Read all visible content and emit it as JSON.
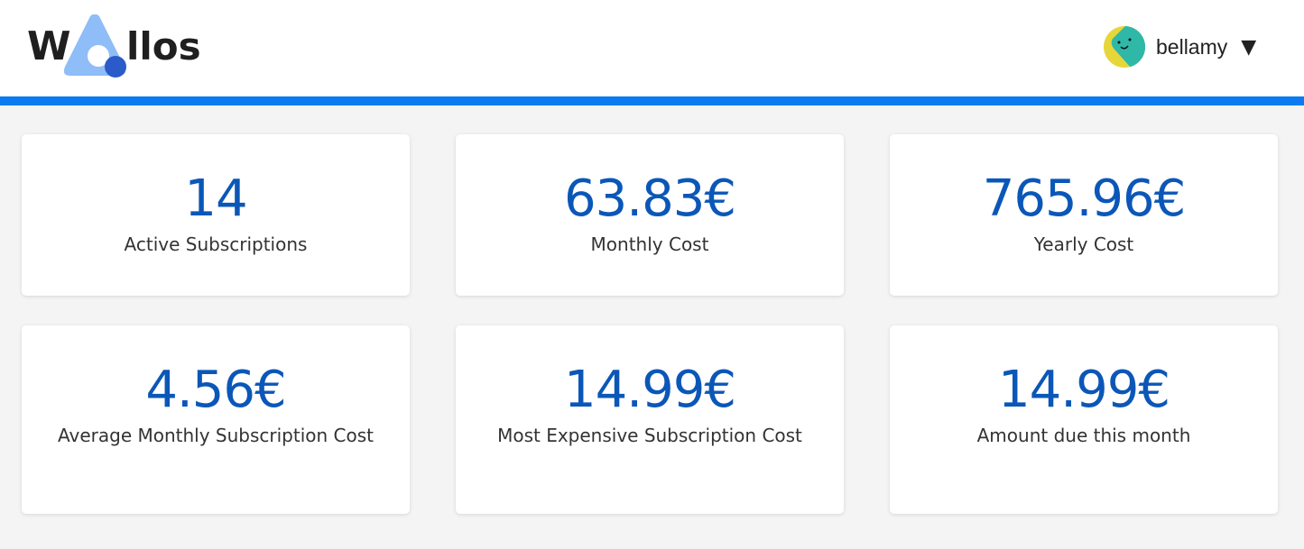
{
  "app": {
    "logo_text": "Wallos",
    "colors": {
      "accent": "#0a7bf0",
      "value": "#0b57b8"
    }
  },
  "user": {
    "name": "bellamy",
    "caret": "▼",
    "avatar_icon": "smiley-avatar-icon"
  },
  "stats": [
    {
      "value": "14",
      "label": "Active Subscriptions"
    },
    {
      "value": "63.83€",
      "label": "Monthly Cost"
    },
    {
      "value": "765.96€",
      "label": "Yearly Cost"
    },
    {
      "value": "4.56€",
      "label": "Average Monthly Subscription Cost"
    },
    {
      "value": "14.99€",
      "label": "Most Expensive Subscription Cost"
    },
    {
      "value": "14.99€",
      "label": "Amount due this month"
    }
  ]
}
